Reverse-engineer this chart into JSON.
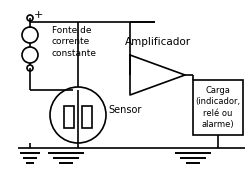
{
  "title": "",
  "background_color": "#ffffff",
  "text_color": "#000000",
  "line_color": "#000000",
  "fonte_label": "Fonte de\ncorrente\nconstante",
  "sensor_label": "Sensor",
  "amplificador_label": "Amplificador",
  "carga_label": "Carga\n(indicador,\nrelé ou\nalarme)",
  "plus_symbol": "+",
  "fig_width": 2.5,
  "fig_height": 1.78,
  "dpi": 100
}
